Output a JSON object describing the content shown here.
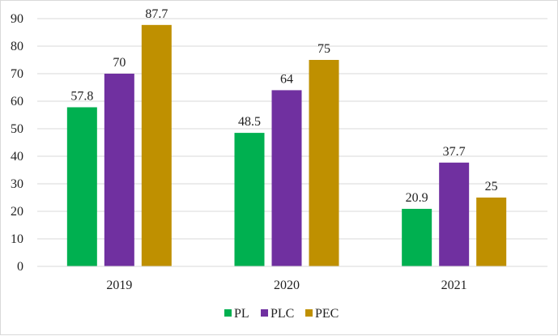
{
  "chart_data": {
    "type": "bar",
    "title": "",
    "xlabel": "",
    "ylabel": "",
    "categories": [
      "2019",
      "2020",
      "2021"
    ],
    "series": [
      {
        "name": "PL",
        "color": "#00b050",
        "values": [
          57.8,
          48.5,
          20.9
        ],
        "labels": [
          "57.8",
          "48.5",
          "20.9"
        ]
      },
      {
        "name": "PLC",
        "color": "#7030a0",
        "values": [
          70,
          64,
          37.7
        ],
        "labels": [
          "70",
          "64",
          "37.7"
        ]
      },
      {
        "name": "PEC",
        "color": "#bf9000",
        "values": [
          87.7,
          75,
          25
        ],
        "labels": [
          "87.7",
          "75",
          "25"
        ]
      }
    ],
    "ylim": [
      0,
      90
    ],
    "yticks": [
      "0",
      "10",
      "20",
      "30",
      "40",
      "50",
      "60",
      "70",
      "80",
      "90"
    ],
    "grid": true,
    "legend": "bottom"
  }
}
